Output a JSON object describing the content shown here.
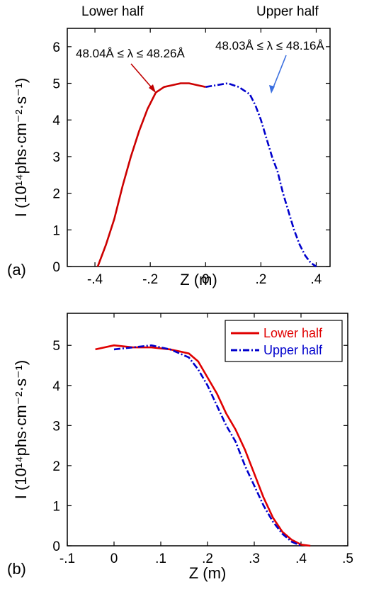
{
  "figure": {
    "header_left": "Lower half",
    "header_right": "Upper half"
  },
  "chart_data": [
    {
      "type": "line",
      "panel_label": "(a)",
      "xlabel": "Z (m)",
      "ylabel": "I (10¹⁴phs·cm⁻²·s⁻¹)",
      "xlim": [
        -0.5,
        0.45
      ],
      "ylim": [
        0,
        6.5
      ],
      "xticks": [
        -0.4,
        -0.2,
        0,
        0.2,
        0.4
      ],
      "yticks": [
        0,
        1,
        2,
        3,
        4,
        5,
        6
      ],
      "annotations": [
        {
          "text": "48.04Å ≤ λ ≤ 48.26Å",
          "color": "#c00000"
        },
        {
          "text": "48.03Å ≤ λ ≤ 48.16Å",
          "color": "#3a6fe0"
        }
      ],
      "series": [
        {
          "name": "Lower half",
          "color": "#cc0000",
          "style": "solid",
          "x": [
            -0.39,
            -0.36,
            -0.33,
            -0.3,
            -0.27,
            -0.24,
            -0.21,
            -0.18,
            -0.15,
            -0.12,
            -0.09,
            -0.06,
            -0.03,
            0.0
          ],
          "y": [
            0.0,
            0.6,
            1.3,
            2.2,
            3.0,
            3.7,
            4.3,
            4.75,
            4.9,
            4.95,
            5.0,
            5.0,
            4.95,
            4.9
          ]
        },
        {
          "name": "Upper half",
          "color": "#0000cc",
          "style": "dashdot",
          "x": [
            0.0,
            0.04,
            0.08,
            0.12,
            0.16,
            0.18,
            0.2,
            0.22,
            0.24,
            0.26,
            0.28,
            0.3,
            0.32,
            0.34,
            0.36,
            0.38,
            0.4
          ],
          "y": [
            4.9,
            4.95,
            5.0,
            4.9,
            4.7,
            4.4,
            4.0,
            3.5,
            3.0,
            2.6,
            2.0,
            1.5,
            1.0,
            0.6,
            0.3,
            0.1,
            0.0
          ]
        }
      ]
    },
    {
      "type": "line",
      "panel_label": "(b)",
      "xlabel": "Z (m)",
      "ylabel": "I (10¹⁴phs·cm⁻²·s⁻¹)",
      "xlim": [
        -0.1,
        0.5
      ],
      "ylim": [
        0,
        5.8
      ],
      "xticks": [
        -0.1,
        0,
        0.1,
        0.2,
        0.3,
        0.4,
        0.5
      ],
      "yticks": [
        0,
        1,
        2,
        3,
        4,
        5
      ],
      "legend": "top-right",
      "series": [
        {
          "name": "Lower half",
          "color": "#e00000",
          "style": "solid",
          "x": [
            -0.04,
            0.0,
            0.04,
            0.08,
            0.12,
            0.16,
            0.18,
            0.2,
            0.22,
            0.24,
            0.26,
            0.28,
            0.3,
            0.32,
            0.34,
            0.36,
            0.38,
            0.4,
            0.42
          ],
          "y": [
            4.9,
            5.0,
            4.95,
            4.95,
            4.9,
            4.8,
            4.6,
            4.2,
            3.8,
            3.3,
            2.9,
            2.4,
            1.8,
            1.2,
            0.7,
            0.35,
            0.15,
            0.03,
            0.0
          ]
        },
        {
          "name": "Upper half",
          "color": "#0000cc",
          "style": "dashdot",
          "x": [
            0.0,
            0.04,
            0.08,
            0.12,
            0.16,
            0.18,
            0.2,
            0.22,
            0.24,
            0.26,
            0.28,
            0.3,
            0.32,
            0.34,
            0.36,
            0.38,
            0.4
          ],
          "y": [
            4.9,
            4.95,
            5.0,
            4.9,
            4.7,
            4.4,
            4.0,
            3.5,
            3.0,
            2.6,
            2.0,
            1.5,
            1.0,
            0.6,
            0.3,
            0.1,
            0.0
          ]
        }
      ]
    }
  ]
}
